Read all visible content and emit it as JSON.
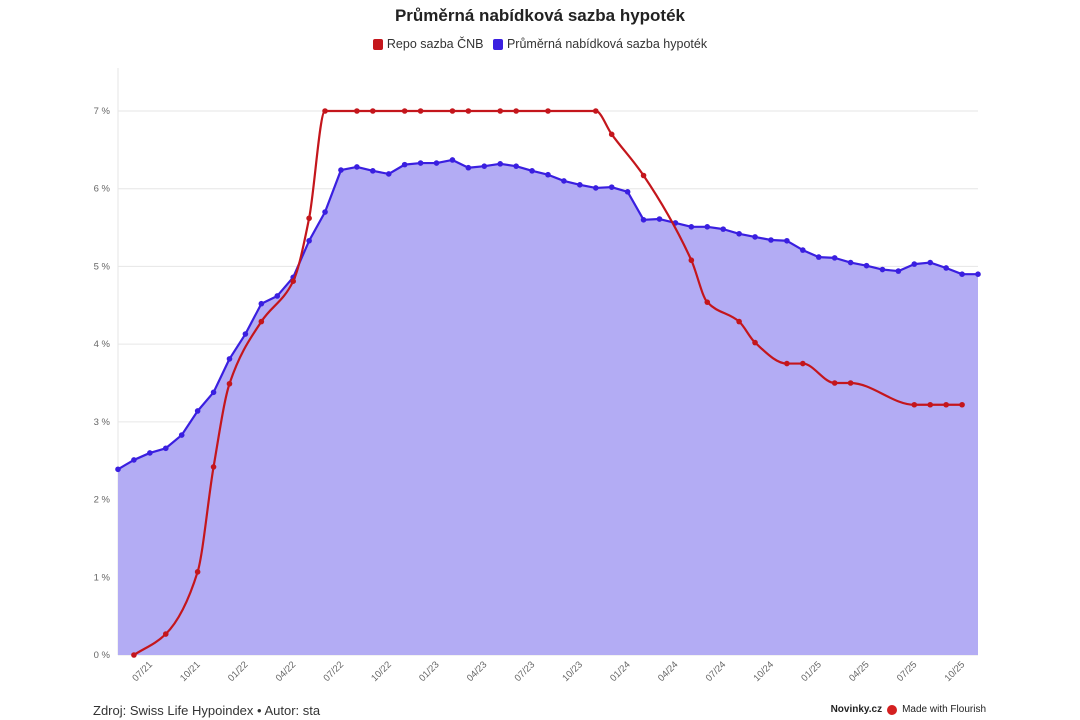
{
  "chart_data": {
    "type": "line",
    "title": "Průměrná nabídková sazba hypoték",
    "legend_position": "top",
    "grid": true,
    "ylim": [
      0,
      7
    ],
    "y_ticks": [
      "0 %",
      "1 %",
      "2 %",
      "3 %",
      "4 %",
      "5 %",
      "6 %",
      "7 %"
    ],
    "x_ticks": [
      "07/21",
      "10/21",
      "01/22",
      "04/22",
      "07/22",
      "10/22",
      "01/23",
      "04/23",
      "07/23",
      "10/23",
      "01/24",
      "04/24",
      "07/24",
      "10/24",
      "01/25",
      "04/25",
      "07/25",
      "10/25"
    ],
    "months": [
      "05/21",
      "06/21",
      "07/21",
      "08/21",
      "09/21",
      "10/21",
      "11/21",
      "12/21",
      "01/22",
      "02/22",
      "03/22",
      "04/22",
      "05/22",
      "06/22",
      "07/22",
      "08/22",
      "09/22",
      "10/22",
      "11/22",
      "12/22",
      "01/23",
      "02/23",
      "03/23",
      "04/23",
      "05/23",
      "06/23",
      "07/23",
      "08/23",
      "09/23",
      "10/23",
      "11/23",
      "12/23",
      "01/24",
      "02/24",
      "03/24",
      "04/24",
      "05/24",
      "06/24",
      "07/24",
      "08/24",
      "09/24",
      "10/24",
      "11/24",
      "12/24",
      "01/25",
      "02/25",
      "03/25",
      "04/25",
      "05/25",
      "06/25",
      "07/25",
      "08/25",
      "09/25",
      "10/25",
      "11/25"
    ],
    "series": [
      {
        "name": "Repo sazba ČNB",
        "color": "#c4161c",
        "style": "smooth-line",
        "x": [
          "06/21",
          "08/21",
          "10/21",
          "11/21",
          "12/21",
          "02/22",
          "04/22",
          "05/22",
          "06/22",
          "08/22",
          "09/22",
          "11/22",
          "12/22",
          "02/23",
          "03/23",
          "05/23",
          "06/23",
          "08/23",
          "11/23",
          "12/23",
          "02/24",
          "05/24",
          "06/24",
          "08/24",
          "09/24",
          "11/24",
          "12/24",
          "02/25",
          "03/25",
          "07/25",
          "08/25",
          "09/25",
          "10/25"
        ],
        "values": [
          0,
          0.27,
          1.07,
          2.42,
          3.49,
          4.29,
          4.81,
          5.62,
          7.0,
          7.0,
          7.0,
          7.0,
          7.0,
          7.0,
          7.0,
          7.0,
          7.0,
          7.0,
          7.0,
          6.7,
          6.17,
          5.08,
          4.54,
          4.29,
          4.02,
          3.75,
          3.75,
          3.5,
          3.5,
          3.22,
          3.22,
          3.22,
          3.22
        ]
      },
      {
        "name": "Průměrná nabídková sazba hypoték",
        "color": "#3a1fe0",
        "fill": "#b3acf4",
        "style": "area",
        "values": [
          2.39,
          2.51,
          2.6,
          2.66,
          2.83,
          3.14,
          3.38,
          3.81,
          4.13,
          4.52,
          4.62,
          4.86,
          5.33,
          5.7,
          6.24,
          6.28,
          6.23,
          6.19,
          6.31,
          6.33,
          6.33,
          6.37,
          6.27,
          6.29,
          6.32,
          6.29,
          6.23,
          6.18,
          6.1,
          6.05,
          6.01,
          6.02,
          5.96,
          5.6,
          5.61,
          5.56,
          5.51,
          5.51,
          5.48,
          5.42,
          5.38,
          5.34,
          5.33,
          5.21,
          5.12,
          5.11,
          5.05,
          5.01,
          4.96,
          4.94,
          5.03,
          5.05,
          4.98,
          4.9,
          4.9
        ]
      }
    ]
  },
  "footer": {
    "source": "Zdroj: Swiss Life Hypoindex • Autor: sta",
    "publisher": "Novinky.cz",
    "made_with": "Made with Flourish"
  }
}
